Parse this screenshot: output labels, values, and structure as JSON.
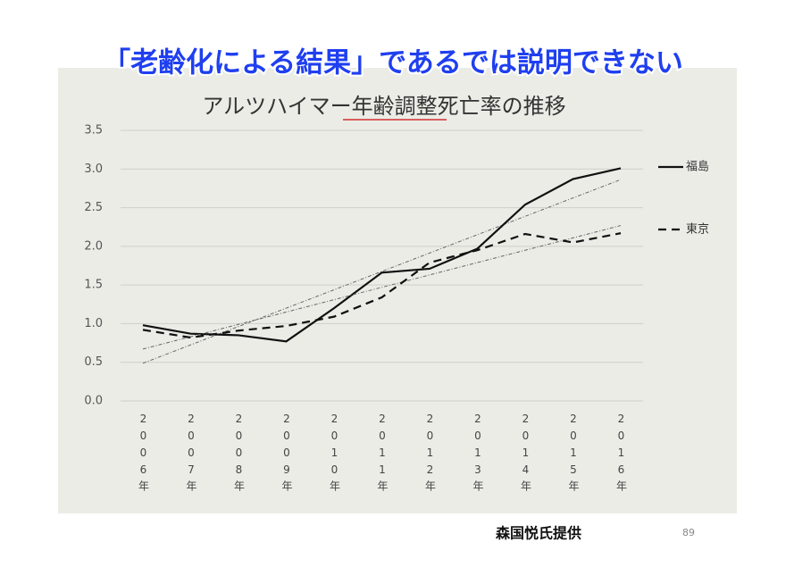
{
  "header": {
    "title": "「老齢化による結果」であるでは説明できない"
  },
  "chart_data": {
    "type": "line",
    "title": "アルツハイマー年齢調整死亡率の推移",
    "categories": [
      "2006年",
      "2007年",
      "2008年",
      "2009年",
      "2010年",
      "2011年",
      "2012年",
      "2013年",
      "2014年",
      "2015年",
      "2016年"
    ],
    "series": [
      {
        "name": "福島",
        "color": "#111111",
        "dash": "solid",
        "values": [
          0.98,
          0.87,
          0.85,
          0.77,
          1.2,
          1.66,
          1.71,
          1.97,
          2.54,
          2.87,
          3.01
        ]
      },
      {
        "name": "東京",
        "color": "#111111",
        "dash": "dashed",
        "values": [
          0.92,
          0.82,
          0.91,
          0.97,
          1.09,
          1.34,
          1.79,
          1.95,
          2.16,
          2.05,
          2.17
        ]
      }
    ],
    "trendline": true,
    "ylim": [
      0,
      3.5
    ],
    "yticks": [
      {
        "value": 0,
        "label": "0.0"
      },
      0.5,
      {
        "value": 1,
        "label": "1.0"
      },
      1.5,
      {
        "value": 2,
        "label": "2.0"
      },
      2.5,
      {
        "value": 3,
        "label": "3.0"
      },
      3.5
    ],
    "grid": true,
    "legend": "right"
  },
  "footer": {
    "credit": "森国悦氏提供",
    "page_number": "89"
  }
}
